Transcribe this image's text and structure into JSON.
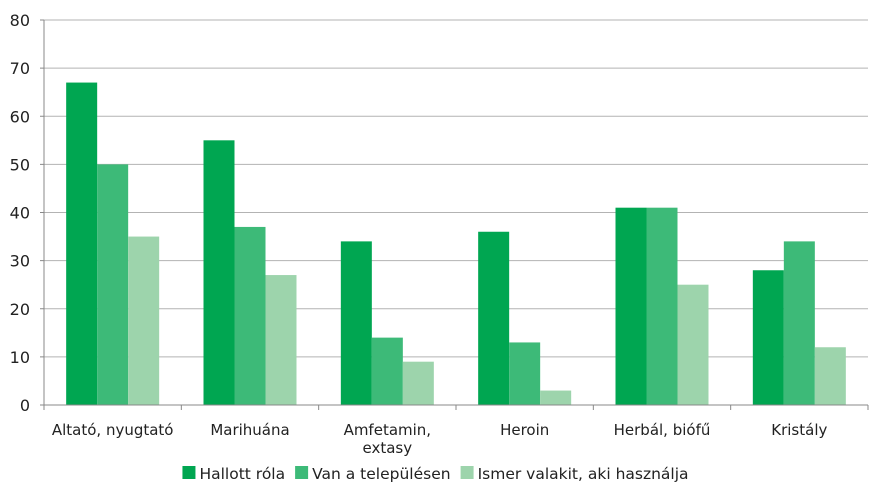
{
  "chart_data": {
    "type": "bar",
    "categories": [
      [
        "Altató, nyugtató"
      ],
      [
        "Marihuána"
      ],
      [
        "Amfetamin,",
        "extasy"
      ],
      [
        "Heroin"
      ],
      [
        "Herbál, biófű"
      ],
      [
        "Kristály"
      ]
    ],
    "series": [
      {
        "name": "Hallott róla",
        "color": "#00a651",
        "values": [
          67,
          55,
          34,
          36,
          41,
          28
        ]
      },
      {
        "name": "Van a településen",
        "color": "#3dba78",
        "values": [
          50,
          37,
          14,
          13,
          41,
          34
        ]
      },
      {
        "name": "Ismer valakit, aki használja",
        "color": "#9dd4ac",
        "values": [
          35,
          27,
          9,
          3,
          25,
          12
        ]
      }
    ],
    "ylim": [
      0,
      80
    ],
    "yticks": [
      0,
      10,
      20,
      30,
      40,
      50,
      60,
      70,
      80
    ],
    "grid": true,
    "legend": "bottom",
    "title": "",
    "xlabel": "",
    "ylabel": ""
  }
}
